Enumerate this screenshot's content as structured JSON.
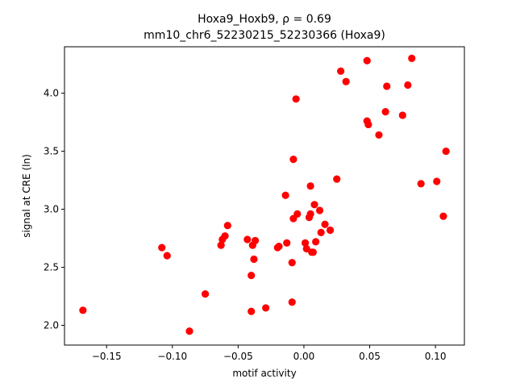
{
  "chart_data": {
    "type": "scatter",
    "title_line1": "Hoxa9_Hoxb9, ρ = 0.69",
    "title_line2": "mm10_chr6_52230215_52230366 (Hoxa9)",
    "xlabel": "motif activity",
    "ylabel": "signal at CRE (ln)",
    "xlim": [
      -0.182,
      0.122
    ],
    "ylim": [
      1.83,
      4.4
    ],
    "xticks": [
      -0.15,
      -0.1,
      -0.05,
      0.0,
      0.05,
      0.1
    ],
    "xtick_labels": [
      "−0.15",
      "−0.10",
      "−0.05",
      "0.00",
      "0.05",
      "0.10"
    ],
    "yticks": [
      2.0,
      2.5,
      3.0,
      3.5,
      4.0
    ],
    "ytick_labels": [
      "2.0",
      "2.5",
      "3.0",
      "3.5",
      "4.0"
    ],
    "marker_color": "#ff0000",
    "grid": false,
    "points": [
      {
        "x": -0.168,
        "y": 2.13
      },
      {
        "x": -0.108,
        "y": 2.67
      },
      {
        "x": -0.104,
        "y": 2.6
      },
      {
        "x": -0.087,
        "y": 1.95
      },
      {
        "x": -0.075,
        "y": 2.27
      },
      {
        "x": -0.063,
        "y": 2.69
      },
      {
        "x": -0.062,
        "y": 2.74
      },
      {
        "x": -0.06,
        "y": 2.77
      },
      {
        "x": -0.058,
        "y": 2.86
      },
      {
        "x": -0.043,
        "y": 2.74
      },
      {
        "x": -0.04,
        "y": 2.43
      },
      {
        "x": -0.04,
        "y": 2.12
      },
      {
        "x": -0.039,
        "y": 2.69
      },
      {
        "x": -0.038,
        "y": 2.57
      },
      {
        "x": -0.037,
        "y": 2.73
      },
      {
        "x": -0.029,
        "y": 2.15
      },
      {
        "x": -0.02,
        "y": 2.67
      },
      {
        "x": -0.019,
        "y": 2.68
      },
      {
        "x": -0.014,
        "y": 3.12
      },
      {
        "x": -0.013,
        "y": 2.71
      },
      {
        "x": -0.009,
        "y": 2.54
      },
      {
        "x": -0.009,
        "y": 2.2
      },
      {
        "x": -0.008,
        "y": 3.43
      },
      {
        "x": -0.008,
        "y": 2.92
      },
      {
        "x": -0.006,
        "y": 3.95
      },
      {
        "x": -0.005,
        "y": 2.96
      },
      {
        "x": 0.001,
        "y": 2.71
      },
      {
        "x": 0.002,
        "y": 2.66
      },
      {
        "x": 0.004,
        "y": 2.93
      },
      {
        "x": 0.005,
        "y": 2.96
      },
      {
        "x": 0.005,
        "y": 3.2
      },
      {
        "x": 0.006,
        "y": 2.63
      },
      {
        "x": 0.007,
        "y": 2.63
      },
      {
        "x": 0.008,
        "y": 3.04
      },
      {
        "x": 0.009,
        "y": 2.72
      },
      {
        "x": 0.012,
        "y": 2.99
      },
      {
        "x": 0.013,
        "y": 2.8
      },
      {
        "x": 0.016,
        "y": 2.87
      },
      {
        "x": 0.02,
        "y": 2.82
      },
      {
        "x": 0.025,
        "y": 3.26
      },
      {
        "x": 0.028,
        "y": 4.19
      },
      {
        "x": 0.032,
        "y": 4.1
      },
      {
        "x": 0.048,
        "y": 4.28
      },
      {
        "x": 0.048,
        "y": 3.76
      },
      {
        "x": 0.049,
        "y": 3.73
      },
      {
        "x": 0.057,
        "y": 3.64
      },
      {
        "x": 0.062,
        "y": 3.84
      },
      {
        "x": 0.063,
        "y": 4.06
      },
      {
        "x": 0.075,
        "y": 3.81
      },
      {
        "x": 0.079,
        "y": 4.07
      },
      {
        "x": 0.082,
        "y": 4.3
      },
      {
        "x": 0.089,
        "y": 3.22
      },
      {
        "x": 0.101,
        "y": 3.24
      },
      {
        "x": 0.106,
        "y": 2.94
      },
      {
        "x": 0.108,
        "y": 3.5
      }
    ]
  }
}
